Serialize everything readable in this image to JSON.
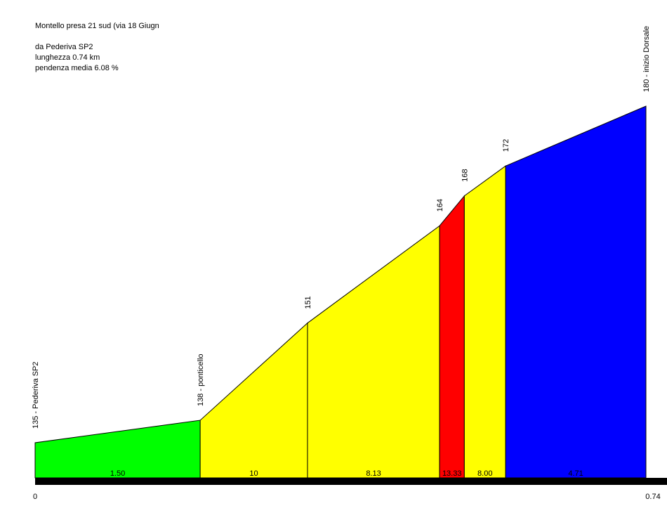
{
  "chart_data": {
    "type": "profile",
    "title": "Montello presa 21 sud (via 18 Giugn",
    "subtitle": [
      "da Pederiva SP2",
      "lunghezza 0.74 km",
      "pendenza media 6.08 %"
    ],
    "x": [
      0,
      0.2,
      0.33,
      0.49,
      0.52,
      0.57,
      0.74
    ],
    "values": [
      135,
      138,
      151,
      164,
      168,
      172,
      180
    ],
    "value_labels": [
      "135 - Pederiva SP2",
      "138 - ponticello",
      "151",
      "164",
      "168",
      "172",
      "180 - inizio Dorsale"
    ],
    "gradients": [
      1.5,
      10,
      8.13,
      13.33,
      8,
      4.71
    ],
    "gradient_labels": [
      "1.50",
      "10",
      "8.13",
      "13.33",
      "8.00",
      "4.71"
    ],
    "colors": [
      "#00ff00",
      "#ffff00",
      "#ffff00",
      "#ff0000",
      "#ffff00",
      "#0000ff"
    ],
    "xlim": [
      0,
      0.74
    ],
    "xticks": [
      0,
      0.74
    ],
    "ylim": [
      130.3,
      180
    ]
  }
}
